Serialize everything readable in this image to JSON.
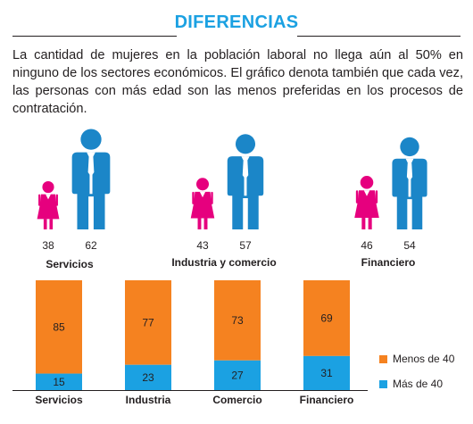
{
  "header": {
    "title": "DIFERENCIAS",
    "intro": "La cantidad de mujeres en la población laboral no llega aún al 50% en ninguno de los sectores económicos. El gráfico denota también que cada vez, las personas con más edad son las menos preferidas en los procesos de contratación."
  },
  "colors": {
    "female": "#e6007e",
    "male": "#1b86c8",
    "menos_de_40": "#f58220",
    "mas_de_40": "#1ba1e2",
    "title": "#1ba1e2"
  },
  "icons": [
    "woman-icon",
    "man-icon"
  ],
  "chart_data": [
    {
      "type": "pictograph",
      "categories": [
        "Servicios",
        "Industria y comercio",
        "Financiero"
      ],
      "series": [
        {
          "icon": "woman-icon",
          "values": [
            38,
            43,
            46
          ]
        },
        {
          "icon": "man-icon",
          "values": [
            62,
            57,
            54
          ]
        }
      ]
    },
    {
      "type": "bar",
      "stacked": true,
      "categories": [
        "Servicios",
        "Industria",
        "Comercio",
        "Financiero"
      ],
      "series": [
        {
          "name": "Más de 40",
          "values": [
            15,
            23,
            27,
            31
          ]
        },
        {
          "name": "Menos de 40",
          "values": [
            85,
            77,
            73,
            69
          ]
        }
      ],
      "ylim": [
        0,
        100
      ],
      "legend": "right"
    }
  ]
}
